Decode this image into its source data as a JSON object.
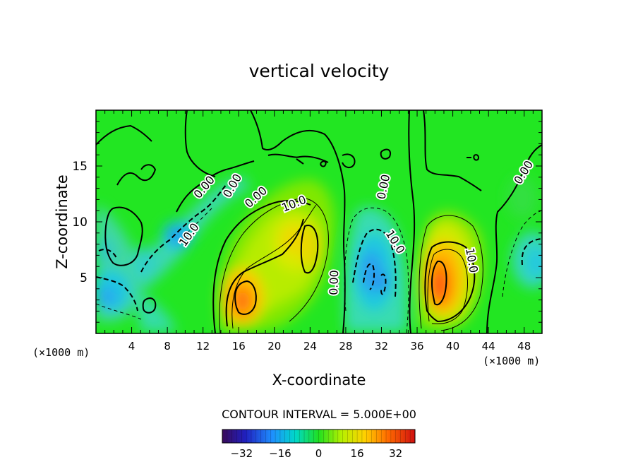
{
  "chart_data": {
    "type": "heatmap",
    "title": "vertical velocity",
    "xlabel": "X-coordinate",
    "ylabel": "Z-coordinate",
    "x_units_left": "(×1000 m)",
    "x_units_right": "(×1000 m)",
    "xlim": [
      0,
      50
    ],
    "ylim": [
      0,
      20
    ],
    "x_ticks": [
      "4",
      "8",
      "12",
      "16",
      "20",
      "24",
      "28",
      "32",
      "36",
      "40",
      "44",
      "48"
    ],
    "y_ticks": [
      "5",
      "10",
      "15"
    ],
    "contour_interval_label": "CONTOUR INTERVAL = 5.000E+00",
    "contour_labels": [
      "0.00",
      "0.00",
      "0.00",
      "0.00",
      "0.00",
      "0.00",
      "10.0",
      "10.0",
      "10.0",
      "10.0"
    ],
    "colorbar": {
      "range": [
        -40,
        40
      ],
      "ticks": [
        "−32",
        "−16",
        "0",
        "16",
        "32"
      ]
    },
    "features": [
      {
        "x": 17,
        "z": 3.0,
        "value": 32,
        "sign": "up"
      },
      {
        "x": 22,
        "z": 8.0,
        "value": 20,
        "sign": "up"
      },
      {
        "x": 38.5,
        "z": 4.5,
        "value": 32,
        "sign": "up"
      },
      {
        "x": 31,
        "z": 5.0,
        "value": -20,
        "sign": "down"
      },
      {
        "x": 2,
        "z": 3.5,
        "value": -18,
        "sign": "down"
      },
      {
        "x": 9,
        "z": 9.0,
        "value": -22,
        "sign": "down"
      },
      {
        "x": 48,
        "z": 6.5,
        "value": -10,
        "sign": "down"
      }
    ]
  }
}
